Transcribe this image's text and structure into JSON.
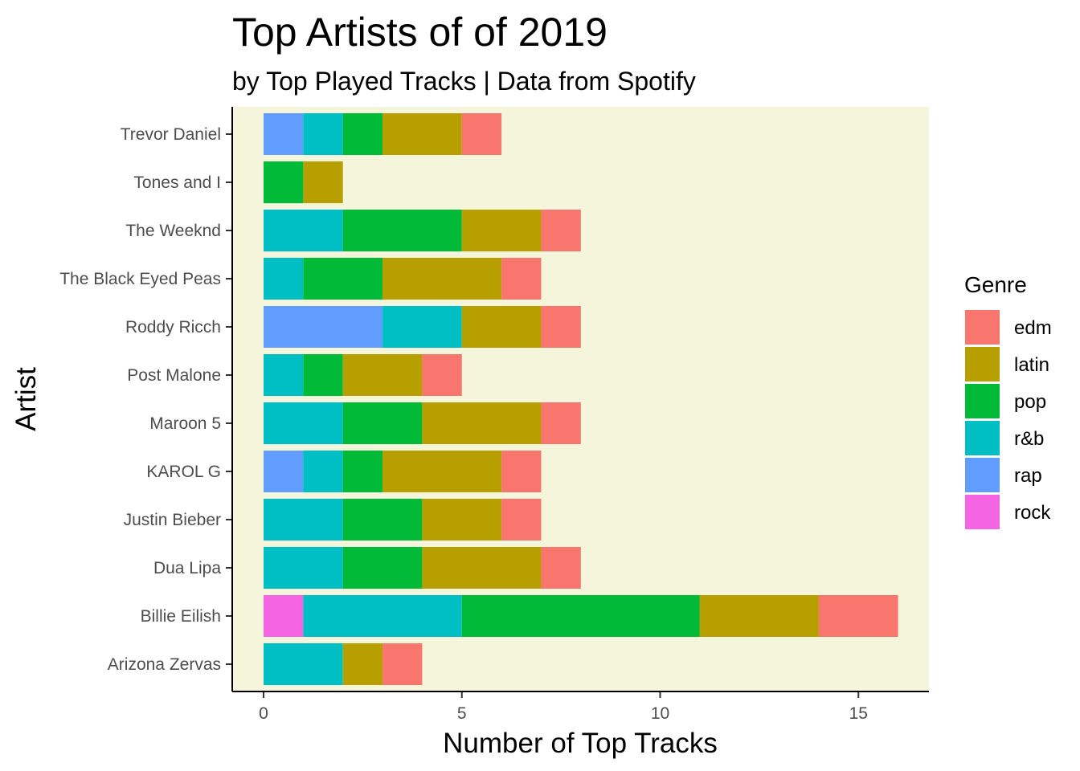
{
  "chart_data": {
    "type": "bar",
    "orientation": "horizontal",
    "stacked": true,
    "title": "Top Artists of of 2019",
    "subtitle": "by Top Played Tracks | Data from Spotify",
    "xlabel": "Number of Top Tracks",
    "ylabel": "Artist",
    "xlim": [
      0,
      16.8
    ],
    "x_ticks": [
      0,
      5,
      10,
      15
    ],
    "grid": false,
    "panel_background": "#f5f5dc",
    "legend": {
      "title": "Genre",
      "position": "right"
    },
    "categories": [
      "Arizona Zervas",
      "Billie Eilish",
      "Dua Lipa",
      "Justin Bieber",
      "KAROL G",
      "Maroon 5",
      "Post Malone",
      "Roddy Ricch",
      "The Black Eyed Peas",
      "The Weeknd",
      "Tones and I",
      "Trevor Daniel"
    ],
    "series": [
      {
        "name": "edm",
        "color": "#f8766d",
        "values": [
          1,
          2,
          1,
          1,
          1,
          1,
          1,
          1,
          1,
          1,
          0,
          1
        ]
      },
      {
        "name": "latin",
        "color": "#b79f00",
        "values": [
          1,
          3,
          3,
          2,
          3,
          3,
          2,
          2,
          3,
          2,
          1,
          2
        ]
      },
      {
        "name": "pop",
        "color": "#00ba38",
        "values": [
          0,
          6,
          2,
          2,
          1,
          2,
          1,
          0,
          2,
          3,
          1,
          1
        ]
      },
      {
        "name": "r&b",
        "color": "#00bfc4",
        "values": [
          2,
          4,
          2,
          2,
          1,
          2,
          1,
          2,
          1,
          2,
          0,
          1
        ]
      },
      {
        "name": "rap",
        "color": "#619cff",
        "values": [
          0,
          0,
          0,
          0,
          1,
          0,
          0,
          3,
          0,
          0,
          0,
          1
        ]
      },
      {
        "name": "rock",
        "color": "#f564e3",
        "values": [
          0,
          1,
          0,
          0,
          0,
          0,
          0,
          0,
          0,
          0,
          0,
          0
        ]
      }
    ]
  }
}
